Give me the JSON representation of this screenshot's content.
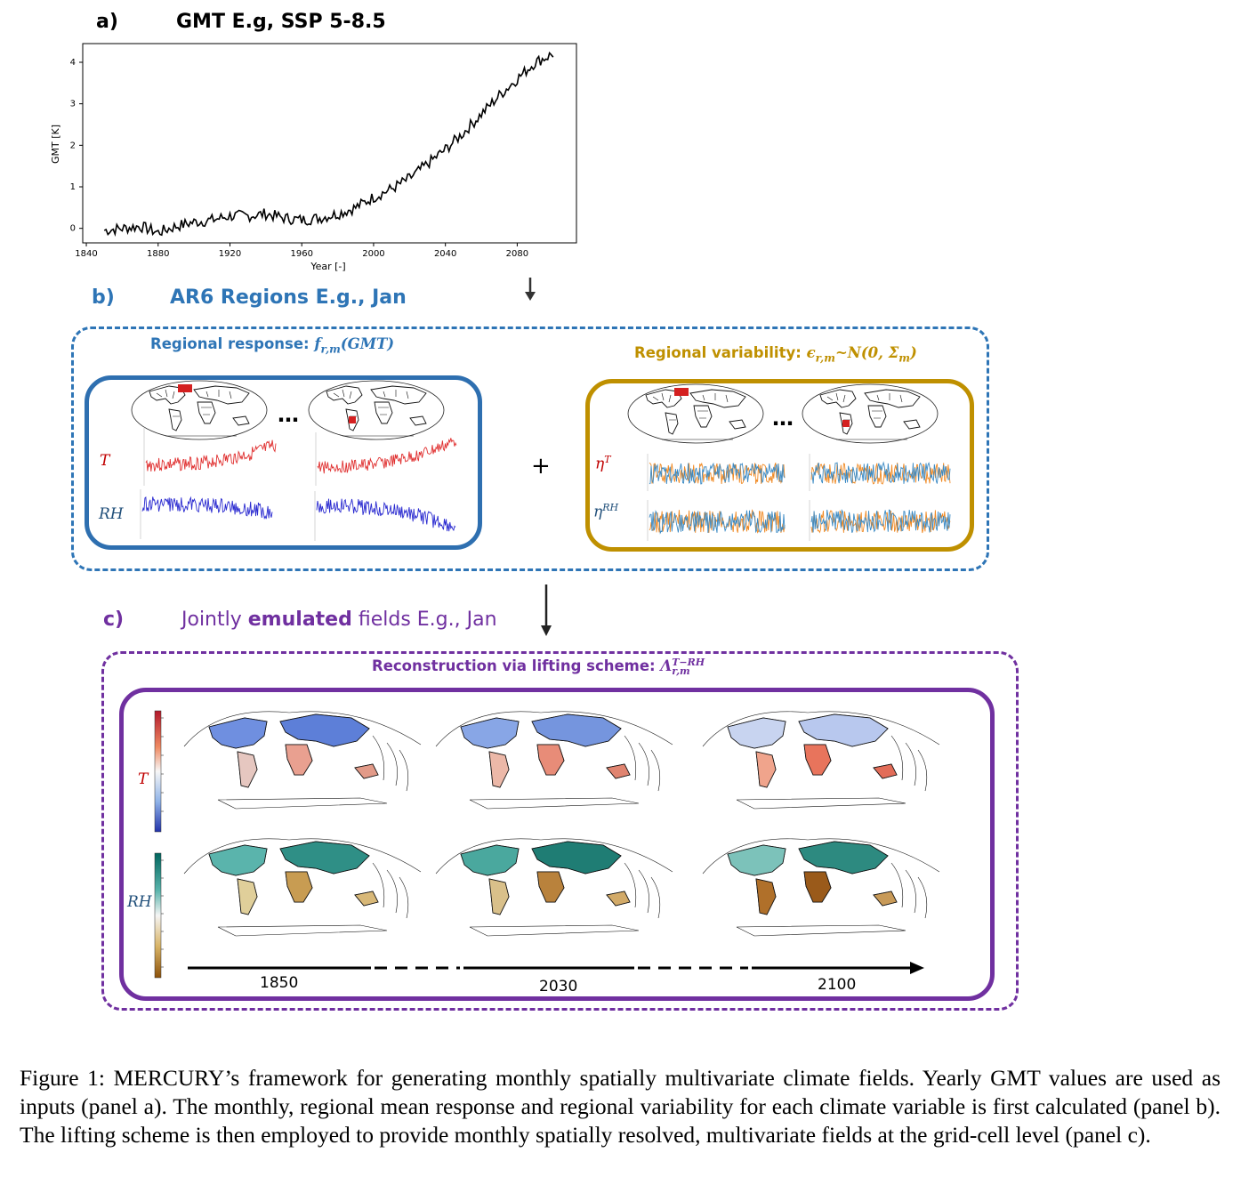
{
  "panel_a": {
    "label": "a)",
    "title": "GMT E.g, SSP 5-8.5",
    "chart_data": {
      "type": "line",
      "xlabel": "Year [-]",
      "ylabel": "GMT [K]",
      "xlim": [
        1838,
        2113
      ],
      "ylim": [
        -0.35,
        4.45
      ],
      "xticks": [
        1840,
        1880,
        1920,
        1960,
        2000,
        2040,
        2080
      ],
      "yticks": [
        0,
        1,
        2,
        3,
        4
      ],
      "anchors": [
        [
          1850,
          -0.05
        ],
        [
          1860,
          0.0
        ],
        [
          1870,
          0.05
        ],
        [
          1880,
          -0.1
        ],
        [
          1890,
          0.05
        ],
        [
          1900,
          0.15
        ],
        [
          1910,
          0.2
        ],
        [
          1920,
          0.3
        ],
        [
          1930,
          0.3
        ],
        [
          1940,
          0.35
        ],
        [
          1950,
          0.25
        ],
        [
          1960,
          0.2
        ],
        [
          1970,
          0.25
        ],
        [
          1980,
          0.35
        ],
        [
          1990,
          0.5
        ],
        [
          2000,
          0.75
        ],
        [
          2010,
          0.95
        ],
        [
          2020,
          1.2
        ],
        [
          2030,
          1.55
        ],
        [
          2040,
          1.9
        ],
        [
          2050,
          2.3
        ],
        [
          2060,
          2.75
        ],
        [
          2070,
          3.2
        ],
        [
          2080,
          3.6
        ],
        [
          2090,
          4.0
        ],
        [
          2100,
          4.2
        ]
      ],
      "line_color": "#000000"
    }
  },
  "panel_b": {
    "label": "b)",
    "title": "AR6 Regions E.g., Jan",
    "response_title": "Regional response: ",
    "response_math": "f",
    "response_sub": "r,m",
    "response_arg": "(GMT)",
    "variability_title": "Regional variability: ",
    "variability_math": "ϵ",
    "variability_sub": "r,m",
    "variability_rest": "~N(0, Σ",
    "variability_sub2": "m",
    "variability_close": ")",
    "ellipsis": "…",
    "plus": "+",
    "var_T": "T",
    "var_RH": "RH",
    "var_etaT": "η",
    "var_etaT_sup": "T",
    "var_etaRH": "η",
    "var_etaRH_sup": "RH",
    "colors": {
      "blue_box": "#2e6fb0",
      "gold_box": "#bf9000",
      "title_blue": "#2e75b6",
      "title_gold": "#bf9000",
      "red": "#e03030",
      "blue": "#2a2ad0",
      "orange": "#f08a24",
      "teal": "#3b8ac4"
    }
  },
  "panel_c": {
    "label": "c)",
    "title_pre": "Jointly ",
    "title_bold": "emulated",
    "title_post": " fields E.g., Jan",
    "reconstruction_title": "Reconstruction via lifting scheme: ",
    "reconstruction_math": "Λ",
    "reconstruction_sup": "T−RH",
    "reconstruction_sub": "r,m",
    "var_T": "T",
    "var_RH": "RH",
    "years": [
      "1850",
      "2030",
      "2100"
    ],
    "colors": {
      "purple": "#7030a0"
    }
  },
  "caption": "Figure 1: MERCURY’s framework for generating monthly spatially multivariate climate fields. Yearly GMT values are used as inputs (panel a). The monthly, regional mean response and regional variability for each climate variable is first calculated (panel b). The lifting scheme is then employed to provide monthly spatially resolved, multivariate fields at the grid-cell level (panel c)."
}
